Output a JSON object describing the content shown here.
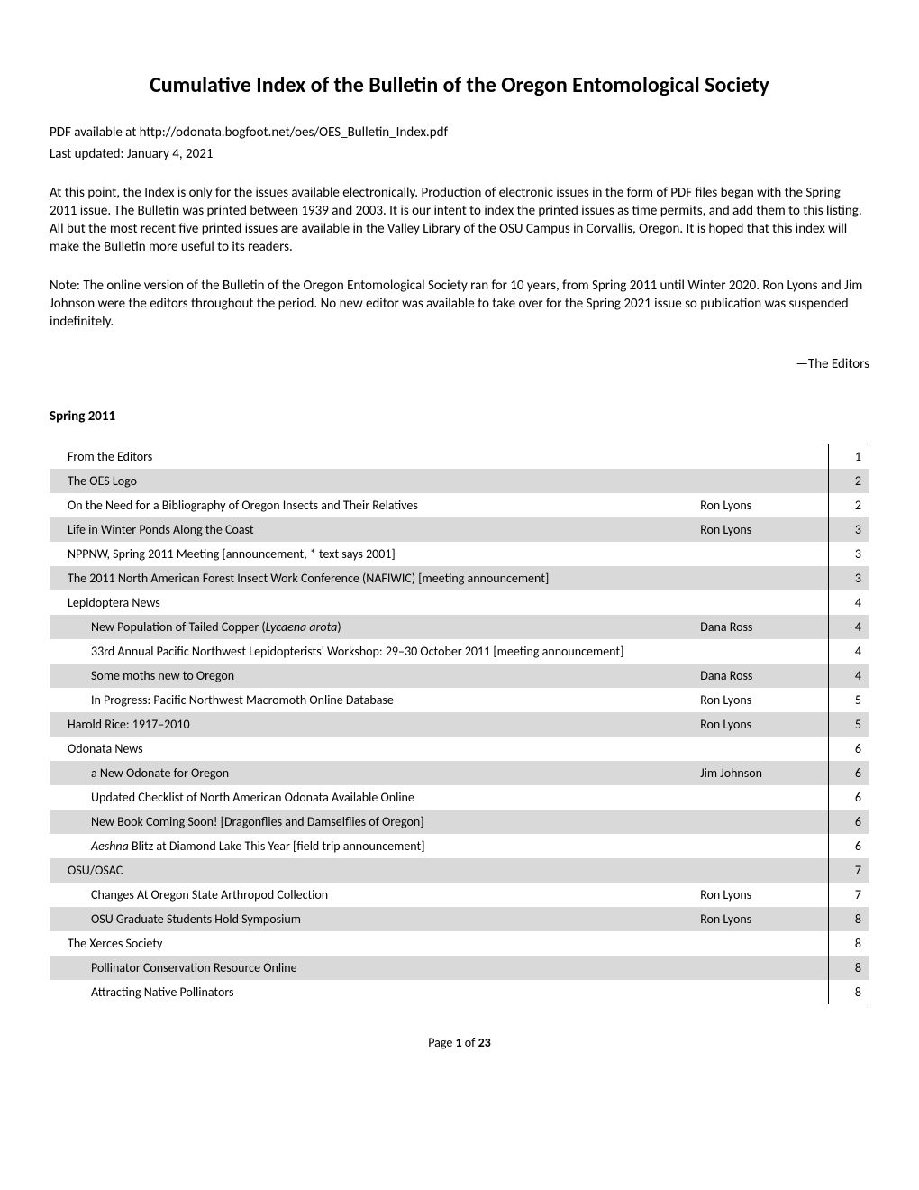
{
  "title": "Cumulative Index of the Bulletin of the Oregon Entomological Society",
  "pdf_line": "PDF available at http://odonata.bogfoot.net/oes/OES_Bulletin_Index.pdf",
  "updated_line": "Last updated: January 4, 2021",
  "para1": "At this point, the Index is only for the issues available electronically. Production of electronic issues in the form of PDF files began with the Spring 2011 issue. The Bulletin was printed between 1939 and 2003. It is our intent to index the printed issues as time permits, and add them to this listing. All but the most recent five printed issues are available in the Valley Library of the OSU Campus in Corvallis, Oregon. It is hoped that this index will make the Bulletin more useful to its readers.",
  "para2": "Note: The online version of the Bulletin of the Oregon Entomological Society ran for 10 years, from Spring 2011 until Winter 2020. Ron Lyons and Jim Johnson were the editors throughout the period. No new editor was available to take over for the Spring 2021 issue so publication was suspended indefinitely.",
  "signoff": "—The Editors",
  "section": "Spring 2011",
  "rows": [
    {
      "indent": 0,
      "shaded": false,
      "title": "From the Editors",
      "author": "",
      "page": "1"
    },
    {
      "indent": 0,
      "shaded": true,
      "title": "The OES Logo",
      "author": "",
      "page": "2"
    },
    {
      "indent": 0,
      "shaded": false,
      "title": "On the Need for a Bibliography of Oregon Insects and Their Relatives",
      "author": "Ron Lyons",
      "page": "2"
    },
    {
      "indent": 0,
      "shaded": true,
      "title": "Life in Winter Ponds Along the Coast",
      "author": "Ron Lyons",
      "page": "3"
    },
    {
      "indent": 0,
      "shaded": false,
      "title": "NPPNW, Spring 2011 Meeting [announcement, * text says 2001]",
      "author": "",
      "page": "3"
    },
    {
      "indent": 0,
      "shaded": true,
      "title": "The 2011 North American Forest Insect Work Conference (NAFIWIC) [meeting announcement]",
      "author": "",
      "page": "3"
    },
    {
      "indent": 0,
      "shaded": false,
      "title": "Lepidoptera News",
      "author": "",
      "page": "4"
    },
    {
      "indent": 1,
      "shaded": true,
      "title_html": "New Population of Tailed Copper (<span class=\"italic\">Lycaena arota</span>)",
      "author": "Dana Ross",
      "page": "4"
    },
    {
      "indent": 1,
      "shaded": false,
      "title": "33rd Annual Pacific Northwest Lepidopterists' Workshop: 29–30 October 2011 [meeting announcement]",
      "author": "",
      "page": "4",
      "hang": true
    },
    {
      "indent": 1,
      "shaded": true,
      "title": "Some moths new to Oregon",
      "author": "Dana Ross",
      "page": "4"
    },
    {
      "indent": 1,
      "shaded": false,
      "title": "In Progress: Pacific Northwest Macromoth Online Database",
      "author": "Ron Lyons",
      "page": "5"
    },
    {
      "indent": 0,
      "shaded": true,
      "title": "Harold Rice: 1917–2010",
      "author": "Ron Lyons",
      "page": "5"
    },
    {
      "indent": 0,
      "shaded": false,
      "title": "Odonata News",
      "author": "",
      "page": "6"
    },
    {
      "indent": 1,
      "shaded": true,
      "title": "a New Odonate for Oregon",
      "author": "Jim Johnson",
      "page": "6"
    },
    {
      "indent": 1,
      "shaded": false,
      "title": "Updated Checklist of North American Odonata Available Online",
      "author": "",
      "page": "6"
    },
    {
      "indent": 1,
      "shaded": true,
      "title": "New Book Coming Soon! [Dragonflies and Damselflies of Oregon]",
      "author": "",
      "page": "6"
    },
    {
      "indent": 1,
      "shaded": false,
      "title_html": "<span class=\"italic\">Aeshna</span> Blitz at Diamond Lake This Year [field trip announcement]",
      "author": "",
      "page": "6"
    },
    {
      "indent": 0,
      "shaded": true,
      "title": "OSU/OSAC",
      "author": "",
      "page": "7"
    },
    {
      "indent": 1,
      "shaded": false,
      "title": "Changes At Oregon State Arthropod Collection",
      "author": "Ron Lyons",
      "page": "7"
    },
    {
      "indent": 1,
      "shaded": true,
      "title": "OSU Graduate Students Hold Symposium",
      "author": "Ron Lyons",
      "page": "8"
    },
    {
      "indent": 0,
      "shaded": false,
      "title": "The Xerces Society",
      "author": "",
      "page": "8"
    },
    {
      "indent": 1,
      "shaded": true,
      "title": "Pollinator Conservation Resource Online",
      "author": "",
      "page": "8"
    },
    {
      "indent": 1,
      "shaded": false,
      "title": "Attracting Native Pollinators",
      "author": "",
      "page": "8"
    }
  ],
  "footer_prefix": "Page ",
  "footer_page": "1",
  "footer_middle": " of ",
  "footer_total": "23",
  "colors": {
    "shaded": "#d9d9d9",
    "text": "#000000",
    "background": "#ffffff"
  }
}
